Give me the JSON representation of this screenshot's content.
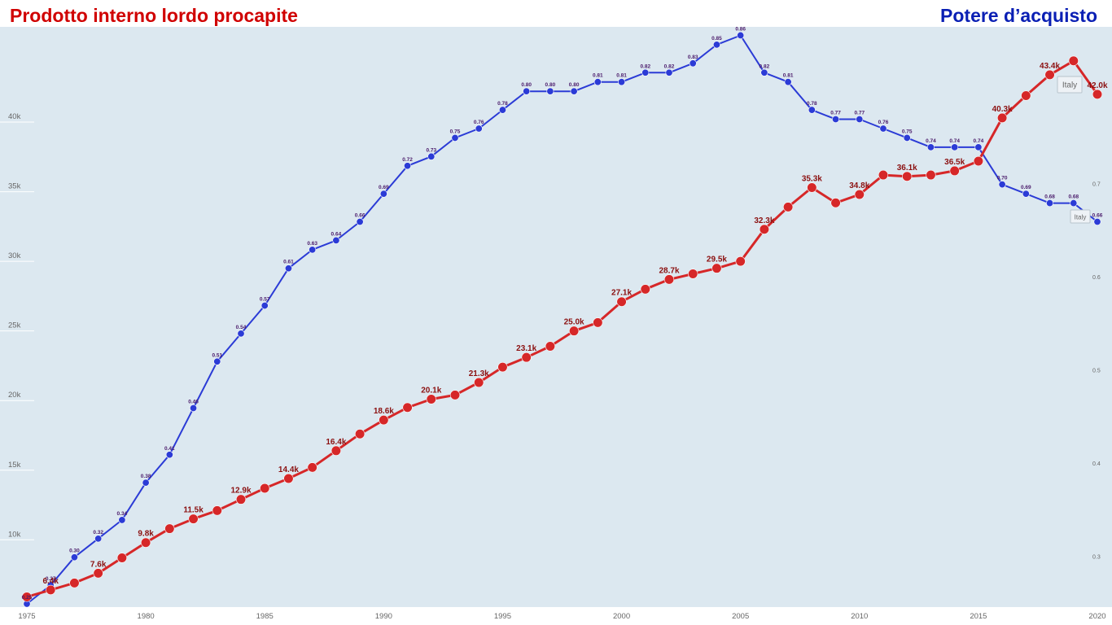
{
  "header": {
    "left_title": "Prodotto interno lordo procapite",
    "right_title": "Potere d’acquisto"
  },
  "colors": {
    "plot_bg": "#dce8f0",
    "left_series": "#d62728",
    "right_series": "#2b3bd6",
    "left_title": "#d00000",
    "right_title": "#0a1fb4"
  },
  "chart_data": {
    "type": "line",
    "title": "",
    "x_ticks": [
      "1975",
      "1980",
      "1985",
      "1990",
      "1995",
      "2000",
      "2005",
      "2010",
      "2015",
      "2020"
    ],
    "left_axis": {
      "ticks": [
        "10k",
        "15k",
        "20k",
        "25k",
        "30k",
        "35k",
        "40k"
      ],
      "ylim": [
        5400,
        46900
      ]
    },
    "right_axis": {
      "ticks": [
        "0.3",
        "0.4",
        "0.5",
        "0.6",
        "0.7"
      ],
      "ylim": [
        0.25,
        0.87
      ]
    },
    "grid": true,
    "series": [
      {
        "name": "Italy",
        "axis": "left",
        "x": [
          1975,
          1976,
          1977,
          1978,
          1979,
          1980,
          1981,
          1982,
          1983,
          1984,
          1985,
          1986,
          1987,
          1988,
          1989,
          1990,
          1991,
          1992,
          1993,
          1994,
          1995,
          1996,
          1997,
          1998,
          1999,
          2000,
          2001,
          2002,
          2003,
          2004,
          2005,
          2006,
          2007,
          2008,
          2009,
          2010,
          2011,
          2012,
          2013,
          2014,
          2015,
          2016,
          2017,
          2018,
          2019,
          2020
        ],
        "values": [
          5.9,
          6.4,
          6.9,
          7.6,
          8.7,
          9.8,
          10.8,
          11.5,
          12.1,
          12.9,
          13.7,
          14.4,
          15.2,
          16.4,
          17.6,
          18.6,
          19.5,
          20.1,
          20.4,
          21.3,
          22.4,
          23.1,
          23.9,
          25.0,
          25.6,
          27.1,
          28.0,
          28.7,
          29.1,
          29.5,
          30.0,
          32.3,
          33.9,
          35.3,
          34.2,
          34.8,
          36.2,
          36.1,
          36.2,
          36.5,
          37.2,
          40.3,
          41.9,
          43.4,
          44.4,
          42.0
        ],
        "labels": [
          "",
          "6.4k",
          "",
          "7.6k",
          "",
          "9.8k",
          "",
          "11.5k",
          "",
          "12.9k",
          "",
          "14.4k",
          "",
          "16.4k",
          "",
          "18.6k",
          "",
          "20.1k",
          "",
          "21.3k",
          "",
          "23.1k",
          "",
          "25.0k",
          "",
          "27.1k",
          "",
          "28.7k",
          "",
          "29.5k",
          "",
          "32.3k",
          "",
          "35.3k",
          "",
          "34.8k",
          "",
          "36.1k",
          "",
          "36.5k",
          "",
          "40.3k",
          "",
          "43.4k",
          "",
          "42.0k"
        ]
      },
      {
        "name": "Italy",
        "axis": "right",
        "x": [
          1975,
          1976,
          1977,
          1978,
          1979,
          1980,
          1981,
          1982,
          1983,
          1984,
          1985,
          1986,
          1987,
          1988,
          1989,
          1990,
          1991,
          1992,
          1993,
          1994,
          1995,
          1996,
          1997,
          1998,
          1999,
          2000,
          2001,
          2002,
          2003,
          2004,
          2005,
          2006,
          2007,
          2008,
          2009,
          2010,
          2011,
          2012,
          2013,
          2014,
          2015,
          2016,
          2017,
          2018,
          2019,
          2020
        ],
        "values": [
          0.25,
          0.27,
          0.3,
          0.32,
          0.34,
          0.38,
          0.41,
          0.46,
          0.51,
          0.54,
          0.57,
          0.61,
          0.63,
          0.64,
          0.66,
          0.69,
          0.72,
          0.73,
          0.75,
          0.76,
          0.78,
          0.8,
          0.8,
          0.8,
          0.81,
          0.81,
          0.82,
          0.82,
          0.83,
          0.85,
          0.86,
          0.82,
          0.81,
          0.78,
          0.77,
          0.77,
          0.76,
          0.75,
          0.74,
          0.74,
          0.74,
          0.7,
          0.69,
          0.68,
          0.68,
          0.66
        ],
        "labels": [
          "0.25",
          "0.27",
          "0.30",
          "0.32",
          "0.34",
          "0.38",
          "0.41",
          "0.46",
          "0.51",
          "0.54",
          "0.57",
          "0.61",
          "0.63",
          "0.64",
          "0.66",
          "0.69",
          "0.72",
          "0.73",
          "0.75",
          "0.76",
          "0.78",
          "0.80",
          "0.80",
          "0.80",
          "0.81",
          "0.81",
          "0.82",
          "0.82",
          "0.83",
          "0.85",
          "0.86",
          "0.82",
          "0.81",
          "0.78",
          "0.77",
          "0.77",
          "0.76",
          "0.75",
          "0.74",
          "0.74",
          "0.74",
          "0.70",
          "0.69",
          "0.68",
          "0.68",
          "0.66"
        ]
      }
    ]
  }
}
